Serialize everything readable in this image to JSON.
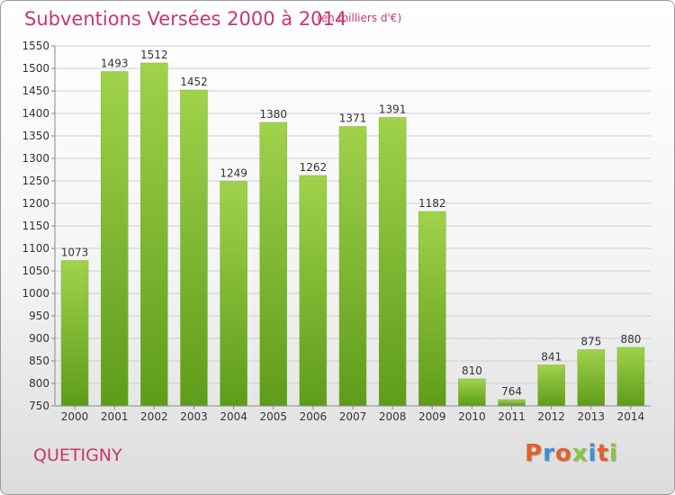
{
  "header": {
    "title": "Subventions Versées 2000 à 2014",
    "subtitle": "(en milliers d'€)"
  },
  "footer": {
    "city": "QUETIGNY",
    "logo_text": "Proxiti"
  },
  "colors": {
    "accent": "#c8366e",
    "bar_top": "#a0d24b",
    "bar_bottom": "#5d9c1a",
    "logo_letters": [
      "#e0622b",
      "#3f8fd6",
      "#e0622b",
      "#8bc43f",
      "#3f8fd6",
      "#e0622b",
      "#8bc43f"
    ]
  },
  "chart_data": {
    "type": "bar",
    "title": "Subventions Versées 2000 à 2014",
    "subtitle": "(en milliers d'€)",
    "categories": [
      "2000",
      "2001",
      "2002",
      "2003",
      "2004",
      "2005",
      "2006",
      "2007",
      "2008",
      "2009",
      "2010",
      "2011",
      "2012",
      "2013",
      "2014"
    ],
    "values": [
      1073,
      1493,
      1512,
      1452,
      1249,
      1380,
      1262,
      1371,
      1391,
      1182,
      810,
      764,
      841,
      875,
      880
    ],
    "ylim": [
      750,
      1550
    ],
    "yticks": [
      750,
      800,
      850,
      900,
      950,
      1000,
      1050,
      1100,
      1150,
      1200,
      1250,
      1300,
      1350,
      1400,
      1450,
      1500,
      1550
    ],
    "grid": true,
    "legend": "none"
  }
}
